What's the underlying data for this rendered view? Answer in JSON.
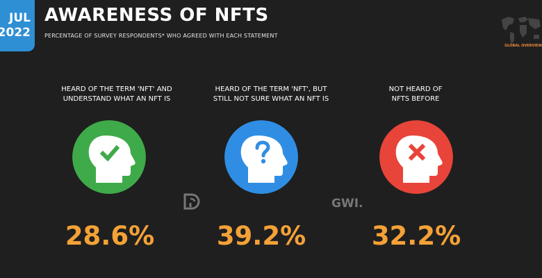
{
  "header": {
    "date_line1": "JUL",
    "date_line2": "2022",
    "title": "AWARENESS OF NFTS",
    "subtitle": "PERCENTAGE OF SURVEY RESPONDENTS* WHO AGREED WITH EACH STATEMENT",
    "logo_text": "GLOBAL OVERVIEW",
    "watermark_right": "GWI."
  },
  "colors": {
    "background": "#1f1f1f",
    "badge": "#2e8fd4",
    "value": "#f4a137",
    "green": "#3faa4a",
    "blue": "#2f8ee3",
    "red": "#e8443a"
  },
  "chart_data": {
    "type": "bar",
    "title": "AWARENESS OF NFTS",
    "categories": [
      "HEARD OF THE TERM 'NFT' AND UNDERSTAND WHAT AN NFT IS",
      "HEARD OF THE TERM 'NFT', BUT STILL NOT SURE WHAT AN NFT IS",
      "NOT HEARD OF NFTS BEFORE"
    ],
    "values": [
      28.6,
      39.2,
      32.2
    ],
    "value_labels": [
      "28.6%",
      "39.2%",
      "32.2%"
    ],
    "items": [
      {
        "line1": "HEARD OF THE TERM 'NFT' AND",
        "line2": "UNDERSTAND WHAT AN NFT IS",
        "icon": "check-mark-icon",
        "color": "#3faa4a"
      },
      {
        "line1": "HEARD OF THE TERM 'NFT', BUT",
        "line2": "STILL NOT SURE WHAT AN NFT IS",
        "icon": "question-mark-icon",
        "color": "#2f8ee3"
      },
      {
        "line1": "NOT HEARD OF",
        "line2": "NFTS BEFORE",
        "icon": "cross-mark-icon",
        "color": "#e8443a"
      }
    ]
  }
}
